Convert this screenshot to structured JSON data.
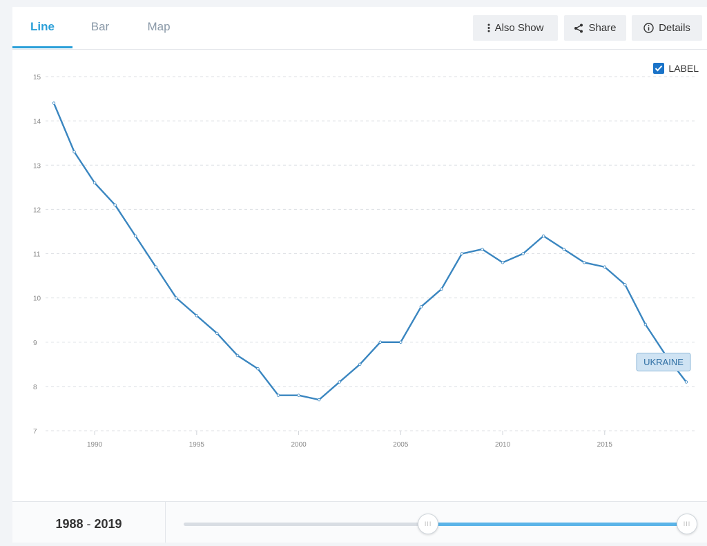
{
  "tabs": [
    {
      "label": "Line",
      "active": true
    },
    {
      "label": "Bar",
      "active": false
    },
    {
      "label": "Map",
      "active": false
    }
  ],
  "toolbar": {
    "also_show": "Also Show",
    "share": "Share",
    "details": "Details"
  },
  "label_toggle": {
    "text": "LABEL",
    "checked": true
  },
  "chart_data": {
    "type": "line",
    "title": "",
    "xlabel": "",
    "ylabel": "",
    "xlim": [
      1988,
      2019
    ],
    "ylim": [
      7,
      15
    ],
    "x_ticks": [
      1990,
      1995,
      2000,
      2005,
      2010,
      2015
    ],
    "y_ticks": [
      7,
      8,
      9,
      10,
      11,
      12,
      13,
      14,
      15
    ],
    "grid": true,
    "line_color": "#3a86c0",
    "series": [
      {
        "name": "UKRAINE",
        "x": [
          1988,
          1989,
          1990,
          1991,
          1992,
          1993,
          1994,
          1995,
          1996,
          1997,
          1998,
          1999,
          2000,
          2001,
          2002,
          2003,
          2004,
          2005,
          2006,
          2007,
          2008,
          2009,
          2010,
          2011,
          2012,
          2013,
          2014,
          2015,
          2016,
          2017,
          2018,
          2019
        ],
        "values": [
          14.4,
          13.3,
          12.6,
          12.1,
          11.4,
          10.7,
          10.0,
          9.6,
          9.2,
          8.7,
          8.4,
          7.8,
          7.8,
          7.7,
          8.1,
          8.5,
          9.0,
          9.0,
          9.8,
          10.2,
          11.0,
          11.1,
          10.8,
          11.0,
          11.4,
          11.1,
          10.8,
          10.7,
          10.3,
          9.4,
          8.7,
          8.1
        ]
      }
    ]
  },
  "footer": {
    "range_start": "1988",
    "range_sep": " - ",
    "range_end": "2019"
  },
  "slider": {
    "start_fraction": 0.485,
    "end_fraction": 1.0
  }
}
